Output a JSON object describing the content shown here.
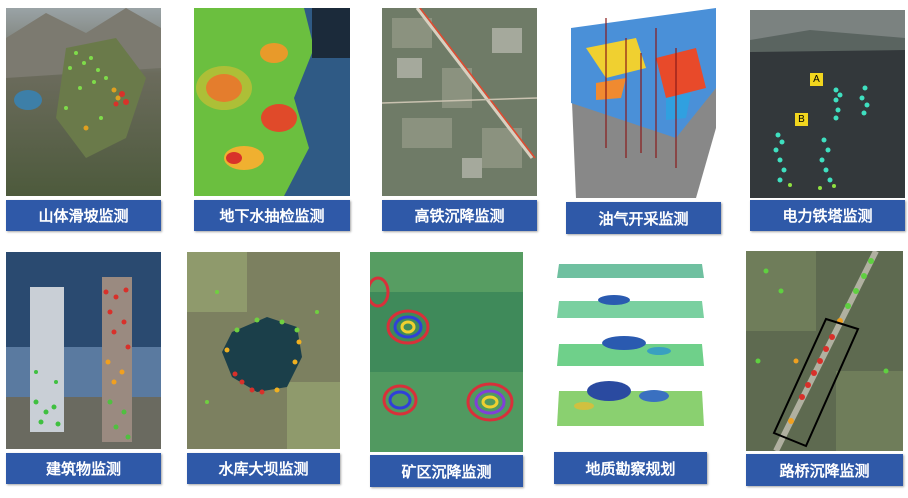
{
  "colors": {
    "caption_bg": "#2f59a8",
    "caption_text": "#ffffff"
  },
  "tiles": [
    {
      "label": "山体滑坡监测"
    },
    {
      "label": "地下水抽检监测"
    },
    {
      "label": "高铁沉降监测"
    },
    {
      "label": "油气开采监测"
    },
    {
      "label": "电力铁塔监测",
      "markers": [
        "A",
        "B"
      ]
    },
    {
      "label": "建筑物监测"
    },
    {
      "label": "水库大坝监测"
    },
    {
      "label": "矿区沉降监测"
    },
    {
      "label": "地质勘察规划"
    },
    {
      "label": "路桥沉降监测"
    }
  ]
}
